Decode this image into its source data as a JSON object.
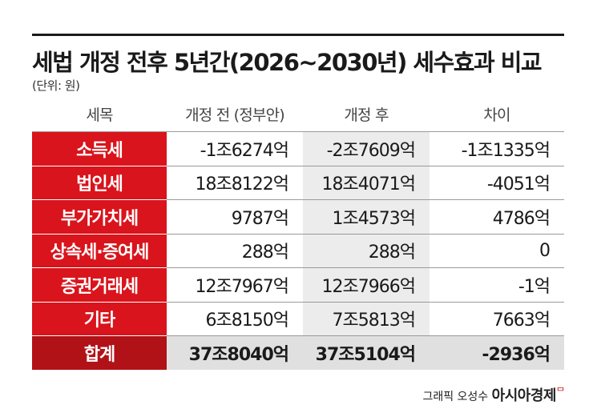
{
  "title": "세법 개정 전후 5년간(2026~2030년) 세수효과 비교",
  "unit": "(단위: 원)",
  "credit": "그래픽 오성수",
  "brand": "아시아경제",
  "brand_mark": "ᄆ",
  "chart_data": {
    "type": "table",
    "title": "세법 개정 전후 5년간(2026~2030년) 세수효과 비교",
    "unit": "(단위: 원)",
    "columns": [
      "세목",
      "개정 전 (정부안)",
      "개정 후",
      "차이"
    ],
    "rows": [
      {
        "name": "소득세",
        "before": "-1조6274억",
        "after": "-2조7609억",
        "diff": "-1조1335억"
      },
      {
        "name": "법인세",
        "before": "18조8122억",
        "after": "18조4071억",
        "diff": "-4051억"
      },
      {
        "name": "부가가치세",
        "before": "9787억",
        "after": "1조4573억",
        "diff": "4786억"
      },
      {
        "name": "상속세·증여세",
        "before": "288억",
        "after": "288억",
        "diff": "0"
      },
      {
        "name": "증권거래세",
        "before": "12조7967억",
        "after": "12조7966억",
        "diff": "-1억"
      },
      {
        "name": "기타",
        "before": "6조8150억",
        "after": "7조5813억",
        "diff": "7663억"
      },
      {
        "name": "합계",
        "before": "37조8040억",
        "after": "37조5104억",
        "diff": "-2936억"
      }
    ]
  },
  "colors": {
    "label_red": "#d9141c",
    "total_red": "#b11218",
    "shade_gray": "#ececec"
  }
}
